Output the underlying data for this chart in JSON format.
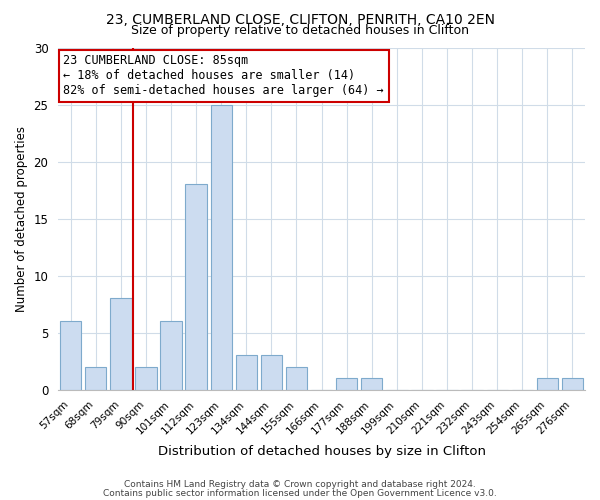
{
  "title1": "23, CUMBERLAND CLOSE, CLIFTON, PENRITH, CA10 2EN",
  "title2": "Size of property relative to detached houses in Clifton",
  "xlabel": "Distribution of detached houses by size in Clifton",
  "ylabel": "Number of detached properties",
  "bar_labels": [
    "57sqm",
    "68sqm",
    "79sqm",
    "90sqm",
    "101sqm",
    "112sqm",
    "123sqm",
    "134sqm",
    "144sqm",
    "155sqm",
    "166sqm",
    "177sqm",
    "188sqm",
    "199sqm",
    "210sqm",
    "221sqm",
    "232sqm",
    "243sqm",
    "254sqm",
    "265sqm",
    "276sqm"
  ],
  "bar_values": [
    6,
    2,
    8,
    2,
    6,
    18,
    25,
    3,
    3,
    2,
    0,
    1,
    1,
    0,
    0,
    0,
    0,
    0,
    0,
    1,
    1
  ],
  "bar_color": "#ccdcf0",
  "bar_edge_color": "#7eaacc",
  "vline_x_index": 2.5,
  "vline_color": "#cc0000",
  "annotation_line1": "23 CUMBERLAND CLOSE: 85sqm",
  "annotation_line2": "← 18% of detached houses are smaller (14)",
  "annotation_line3": "82% of semi-detached houses are larger (64) →",
  "annotation_box_color": "#ffffff",
  "annotation_box_edge": "#cc0000",
  "ylim": [
    0,
    30
  ],
  "yticks": [
    0,
    5,
    10,
    15,
    20,
    25,
    30
  ],
  "footer1": "Contains HM Land Registry data © Crown copyright and database right 2024.",
  "footer2": "Contains public sector information licensed under the Open Government Licence v3.0.",
  "bg_color": "#ffffff",
  "grid_color": "#d0dce8"
}
